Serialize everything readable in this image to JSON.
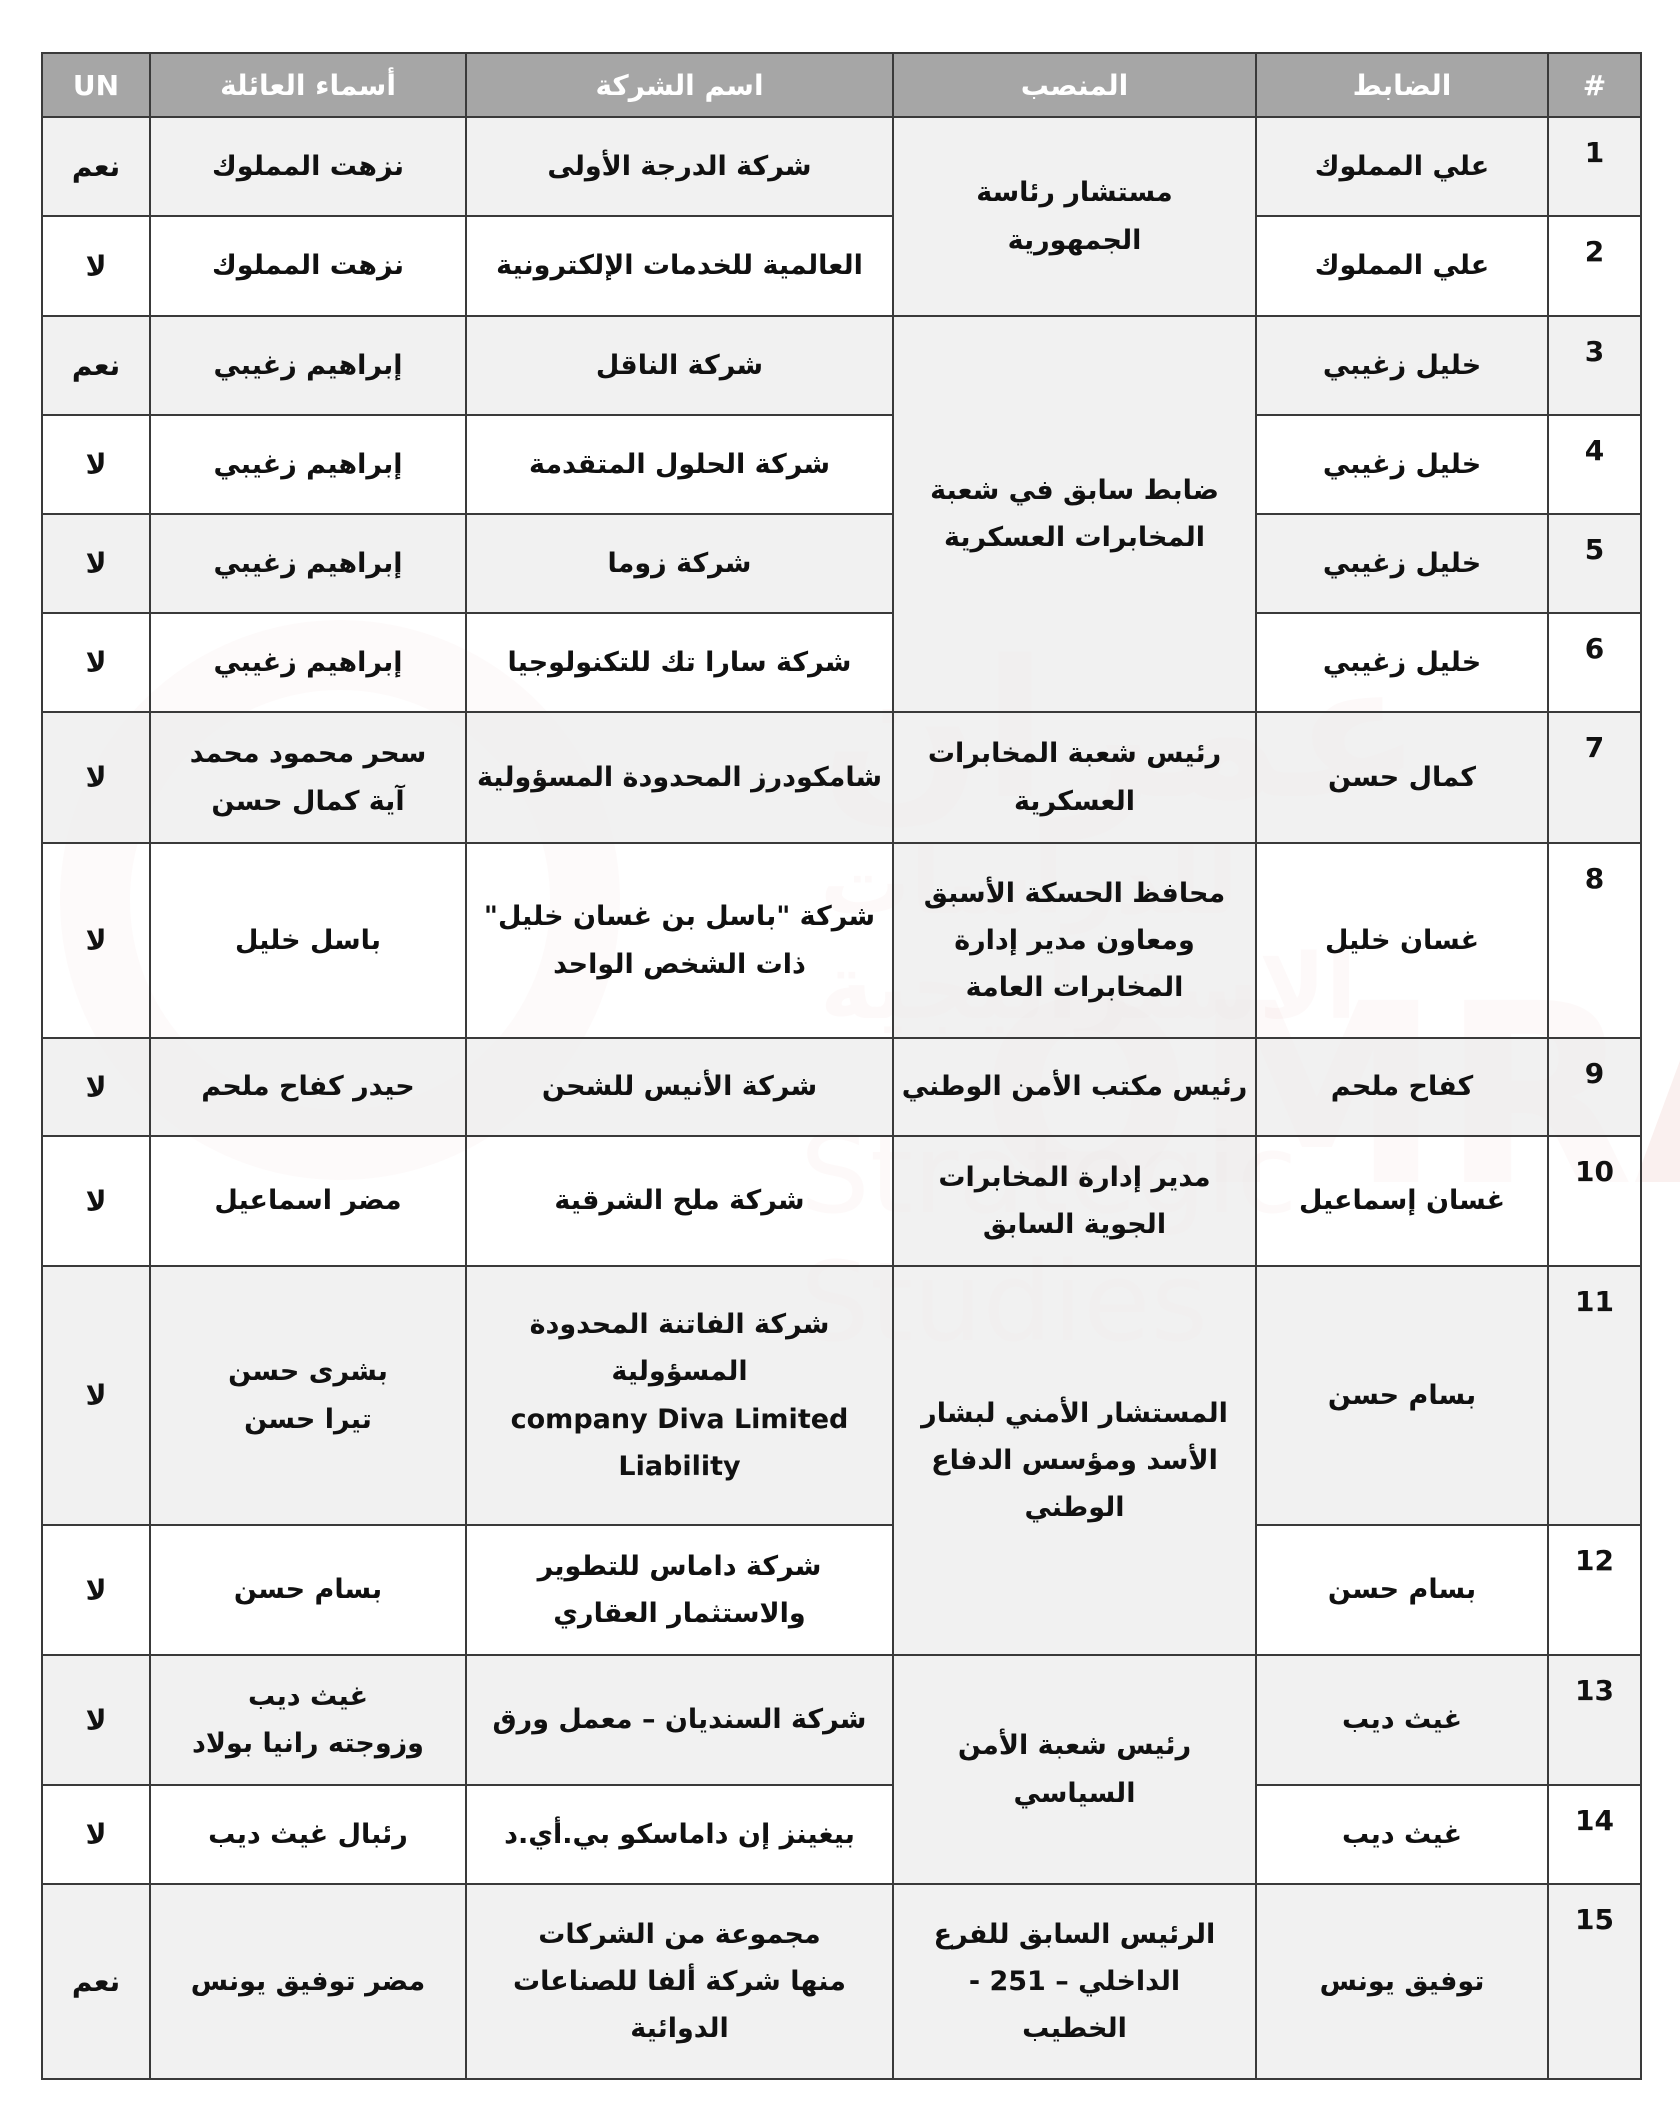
{
  "watermark": {
    "arabic": "عمران",
    "arabic_sub": "للدراسات الاستراتيجية",
    "english": "OMRAN",
    "english_sub": "Strategic Studies",
    "color": "#c0392b"
  },
  "header": {
    "num": "#",
    "officer": "الضابط",
    "position": "المنصب",
    "company": "اسم الشركة",
    "family": "أسماء العائلة",
    "un": "UN"
  },
  "rows": [
    {
      "num": "1",
      "officer": "علي المملوك",
      "position": "مستشار رئاسة\nالجمهورية",
      "company": "شركة الدرجة الأولى",
      "family": "نزهت المملوك",
      "un": "نعم"
    },
    {
      "num": "2",
      "officer": "علي المملوك",
      "position": null,
      "company": "العالمية للخدمات الإلكترونية",
      "family": "نزهت المملوك",
      "un": "لا"
    },
    {
      "num": "3",
      "officer": "خليل زغيبي",
      "position": "ضابط سابق في شعبة\nالمخابرات العسكرية",
      "company": "شركة الناقل",
      "family": "إبراهيم زغيبي",
      "un": "نعم"
    },
    {
      "num": "4",
      "officer": "خليل زغيبي",
      "position": null,
      "company": "شركة الحلول المتقدمة",
      "family": "إبراهيم زغيبي",
      "un": "لا"
    },
    {
      "num": "5",
      "officer": "خليل زغيبي",
      "position": null,
      "company": "شركة زوما",
      "family": "إبراهيم زغيبي",
      "un": "لا"
    },
    {
      "num": "6",
      "officer": "خليل زغيبي",
      "position": null,
      "company": "شركة سارا تك للتكنولوجيا",
      "family": "إبراهيم زغيبي",
      "un": "لا"
    },
    {
      "num": "7",
      "officer": "كمال حسن",
      "position": "رئيس شعبة المخابرات\nالعسكرية",
      "company": "شامكودرز المحدودة المسؤولية",
      "family": "سحر محمود محمد\nآية كمال حسن",
      "un": "لا"
    },
    {
      "num": "8",
      "officer": "غسان خليل",
      "position": "محافظ الحسكة الأسبق\nومعاون مدير إدارة\nالمخابرات العامة",
      "company": "شركة \"باسل بن غسان خليل\"\nذات الشخص الواحد",
      "family": "باسل خليل",
      "un": "لا"
    },
    {
      "num": "9",
      "officer": "كفاح ملحم",
      "position": "رئيس مكتب الأمن الوطني",
      "company": "شركة الأنيس للشحن",
      "family": "حيدر كفاح ملحم",
      "un": "لا"
    },
    {
      "num": "10",
      "officer": "غسان إسماعيل",
      "position": "مدير إدارة المخابرات\nالجوية السابق",
      "company": "شركة ملح الشرقية",
      "family": "مضر اسماعيل",
      "un": "لا"
    },
    {
      "num": "11",
      "officer": "بسام حسن",
      "position": "المستشار الأمني لبشار\nالأسد ومؤسس الدفاع\nالوطني",
      "company": "شركة الفاتنة المحدودة\nالمسؤولية\ncompany  Diva Limited\nLiability",
      "family": "بشرى حسن\nتيرا حسن",
      "un": "لا"
    },
    {
      "num": "12",
      "officer": "بسام حسن",
      "position": null,
      "company": "شركة داماس للتطوير\nوالاستثمار العقاري",
      "family": "بسام حسن",
      "un": "لا"
    },
    {
      "num": "13",
      "officer": "غيث ديب",
      "position": "رئيس شعبة الأمن\nالسياسي",
      "company": "شركة السنديان – معمل ورق",
      "family": "غيث ديب\nوزوجته رانيا بولاد",
      "un": "لا"
    },
    {
      "num": "14",
      "officer": "غيث ديب",
      "position": null,
      "company": "بيغينز إن داماسكو بي.أي.د",
      "family": "رئبال غيث ديب",
      "un": "لا"
    },
    {
      "num": "15",
      "officer": "توفيق يونس",
      "position": "الرئيس السابق للفرع\nالداخلي – 251 -\nالخطيب",
      "company": "مجموعة من الشركات\nمنها شركة ألفا للصناعات\nالدوائية",
      "family": "مضر توفيق يونس",
      "un": "نعم"
    }
  ]
}
